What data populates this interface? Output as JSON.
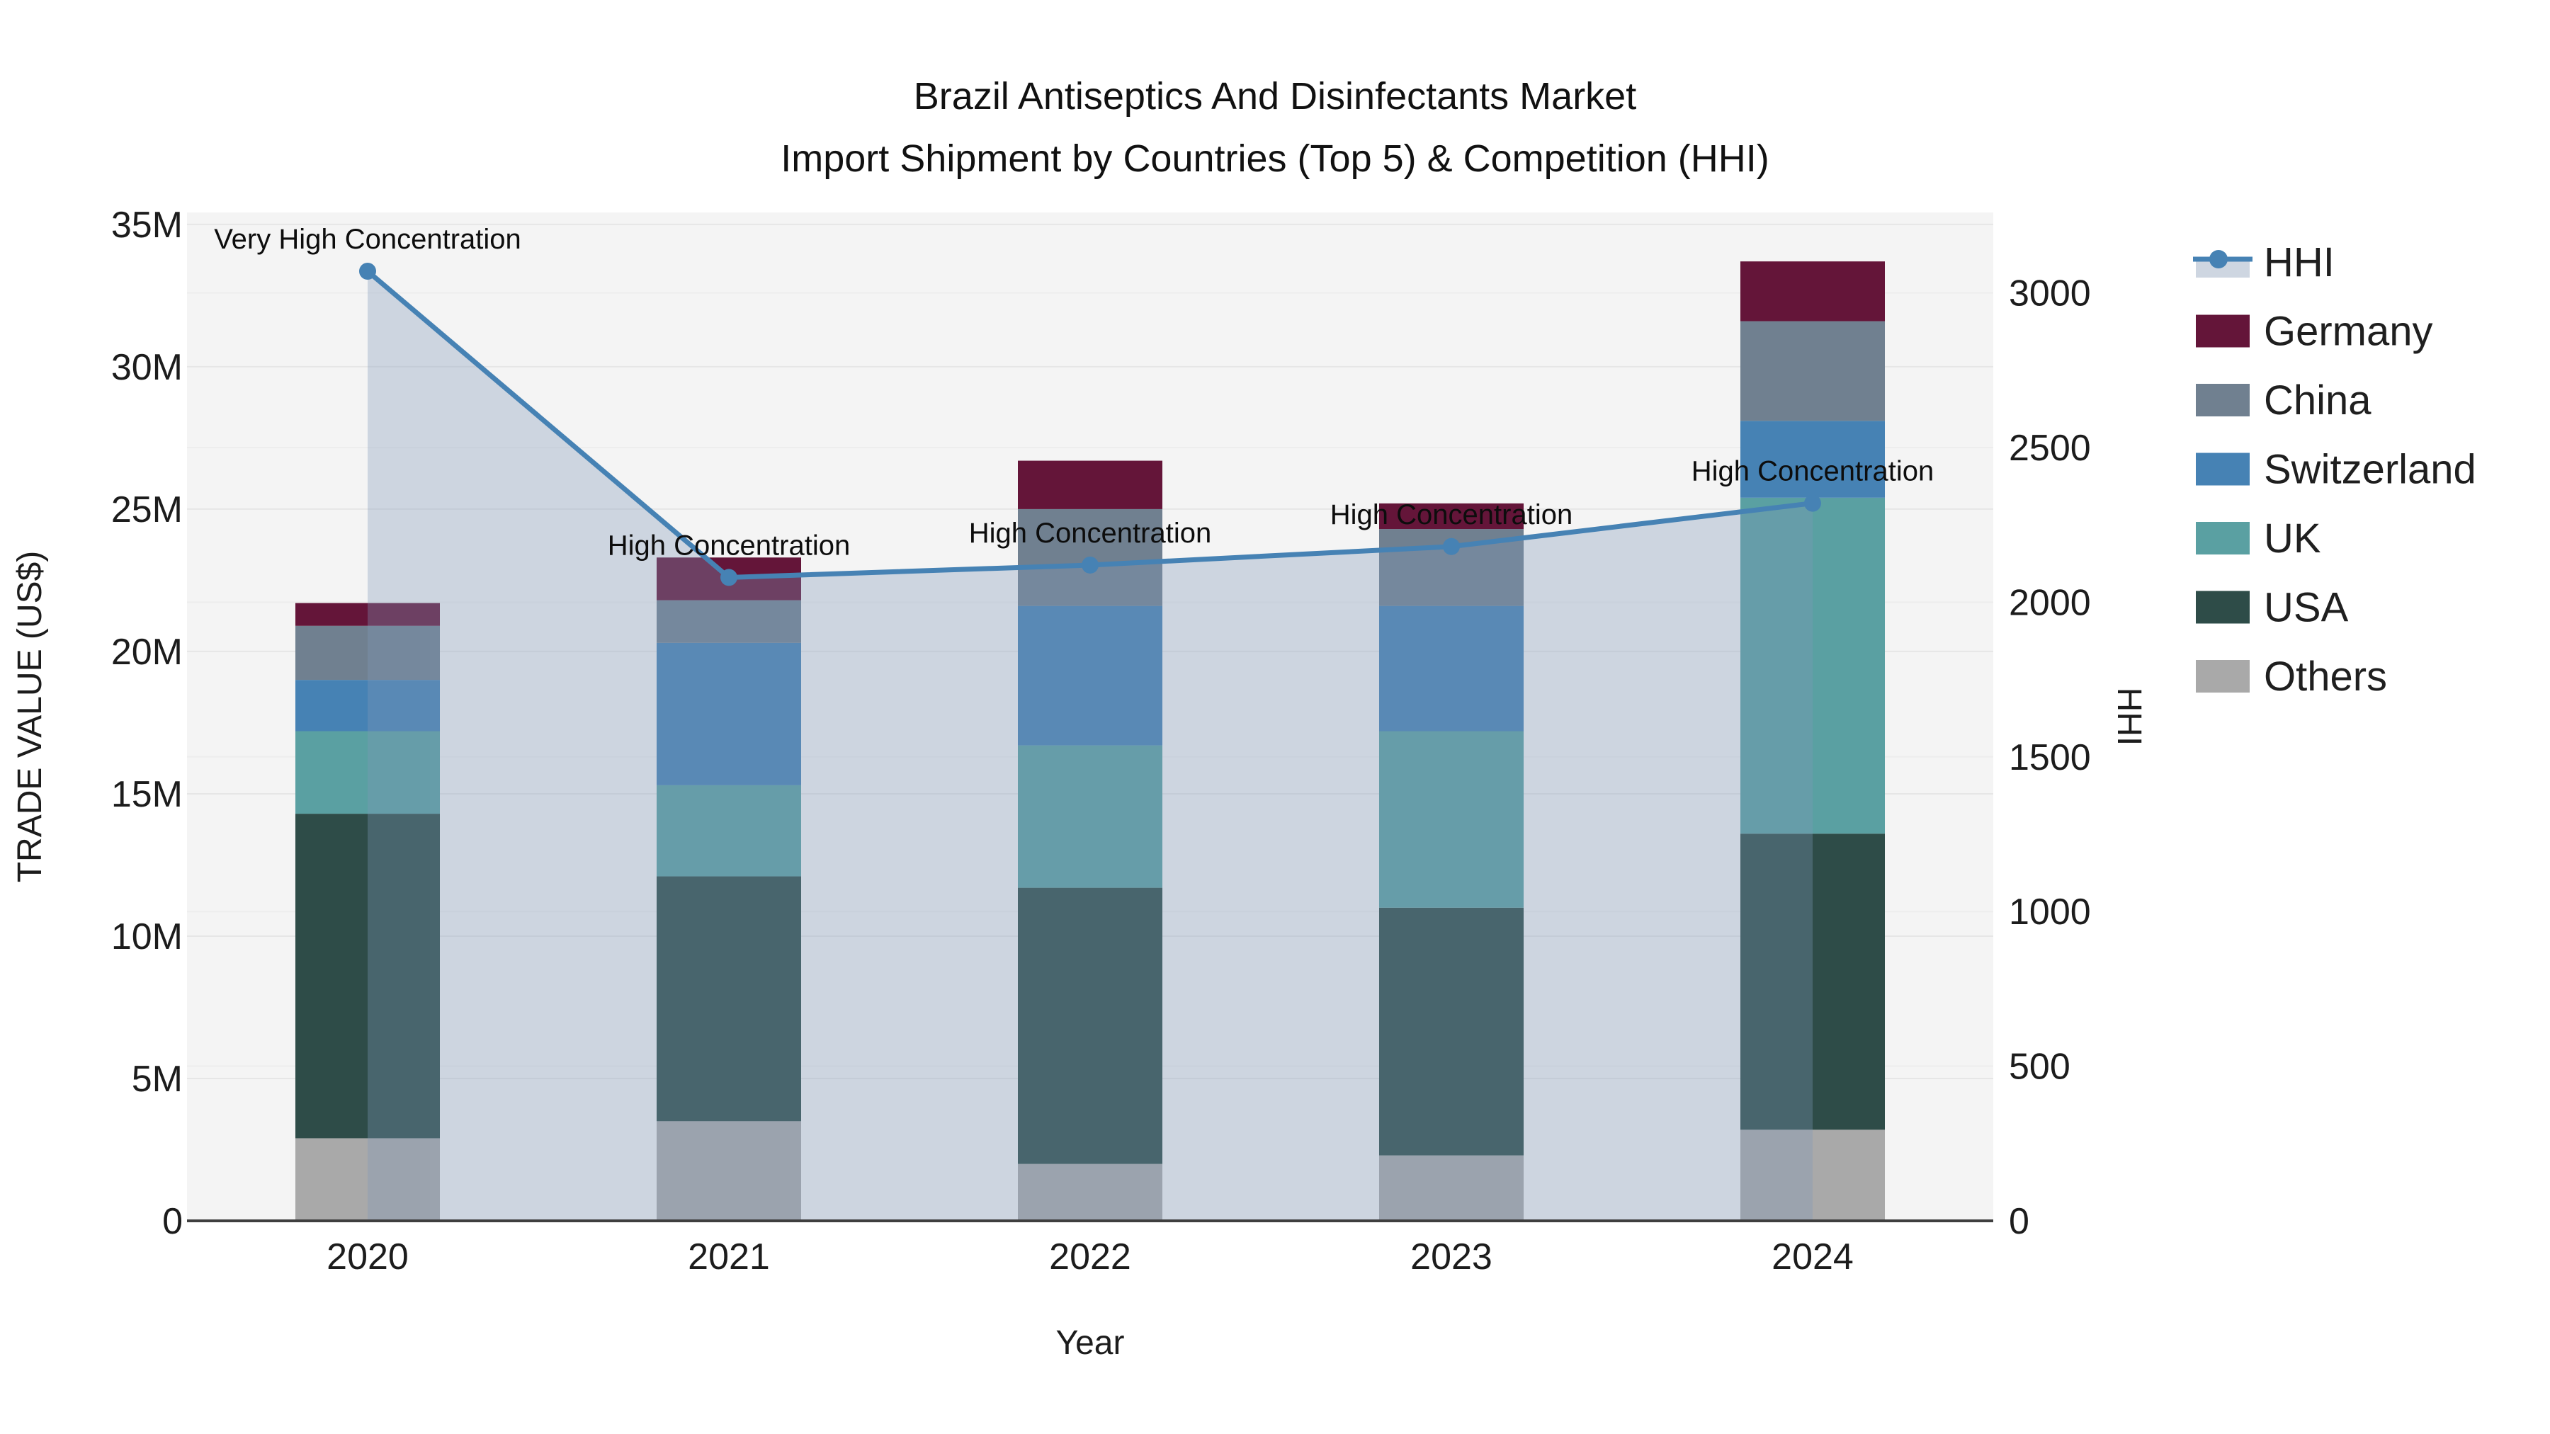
{
  "title": {
    "line1": "Brazil Antiseptics And Disinfectants Market",
    "line2": "Import Shipment by Countries (Top 5) & Competition (HHI)"
  },
  "chart_data": {
    "type": "bar+line",
    "categories": [
      "2020",
      "2021",
      "2022",
      "2023",
      "2024"
    ],
    "xlabel": "Year",
    "ylabel": "TRADE VALUE (US$)",
    "y2label": "HHI",
    "ylim_millions": [
      0,
      35.42
    ],
    "y2lim": [
      0,
      3260
    ],
    "y_ticks": [
      {
        "value": 0,
        "label": "0"
      },
      {
        "value": 5,
        "label": "5M"
      },
      {
        "value": 10,
        "label": "10M"
      },
      {
        "value": 15,
        "label": "15M"
      },
      {
        "value": 20,
        "label": "20M"
      },
      {
        "value": 25,
        "label": "25M"
      },
      {
        "value": 30,
        "label": "30M"
      },
      {
        "value": 35,
        "label": "35M"
      }
    ],
    "y2_ticks": [
      {
        "value": 0,
        "label": "0"
      },
      {
        "value": 500,
        "label": "500"
      },
      {
        "value": 1000,
        "label": "1000"
      },
      {
        "value": 1500,
        "label": "1500"
      },
      {
        "value": 2000,
        "label": "2000"
      },
      {
        "value": 2500,
        "label": "2500"
      },
      {
        "value": 3000,
        "label": "3000"
      }
    ],
    "series": [
      {
        "name": "Germany",
        "color": "#641539",
        "values_millions": [
          0.8,
          1.5,
          1.7,
          0.9,
          2.1
        ]
      },
      {
        "name": "China",
        "color": "#708090",
        "values_millions": [
          1.9,
          1.5,
          3.4,
          2.7,
          3.5
        ]
      },
      {
        "name": "Switzerland",
        "color": "#4682b4",
        "values_millions": [
          1.8,
          5.0,
          4.9,
          4.4,
          2.7
        ]
      },
      {
        "name": "UK",
        "color": "#5aa0a2",
        "values_millions": [
          2.9,
          3.2,
          5.0,
          6.2,
          11.8
        ]
      },
      {
        "name": "USA",
        "color": "#2e4c48",
        "values_millions": [
          11.4,
          8.6,
          9.7,
          8.7,
          10.4
        ]
      },
      {
        "name": "Others",
        "color": "#a9a9a9",
        "values_millions": [
          2.9,
          3.5,
          2.0,
          2.3,
          3.2
        ]
      }
    ],
    "stack_order_bottom_to_top": [
      "Others",
      "USA",
      "UK",
      "Switzerland",
      "China",
      "Germany"
    ],
    "line_series": {
      "name": "HHI",
      "color": "#4682b4",
      "values": [
        3070,
        2080,
        2120,
        2180,
        2320
      ],
      "fill_color": "rgba(127,151,184,0.33)",
      "legend_band_color": "#ced6e1"
    },
    "annotations": [
      {
        "category": "2020",
        "text": "Very High Concentration"
      },
      {
        "category": "2021",
        "text": "High Concentration"
      },
      {
        "category": "2022",
        "text": "High Concentration"
      },
      {
        "category": "2023",
        "text": "High Concentration"
      },
      {
        "category": "2024",
        "text": "High Concentration"
      }
    ],
    "legend_entries": [
      "HHI",
      "Germany",
      "China",
      "Switzerland",
      "UK",
      "USA",
      "Others"
    ],
    "legend_position": "right",
    "grid": true,
    "colors": {
      "plot_background": "#f4f4f4",
      "paper_background": "#ffffff",
      "grid_major": "#e6e6e6",
      "grid_secondary": "#ededed",
      "axis_line": "#3f3f3f",
      "text": "#1c1c1c",
      "annotation_text": "#0d0d0d"
    }
  }
}
